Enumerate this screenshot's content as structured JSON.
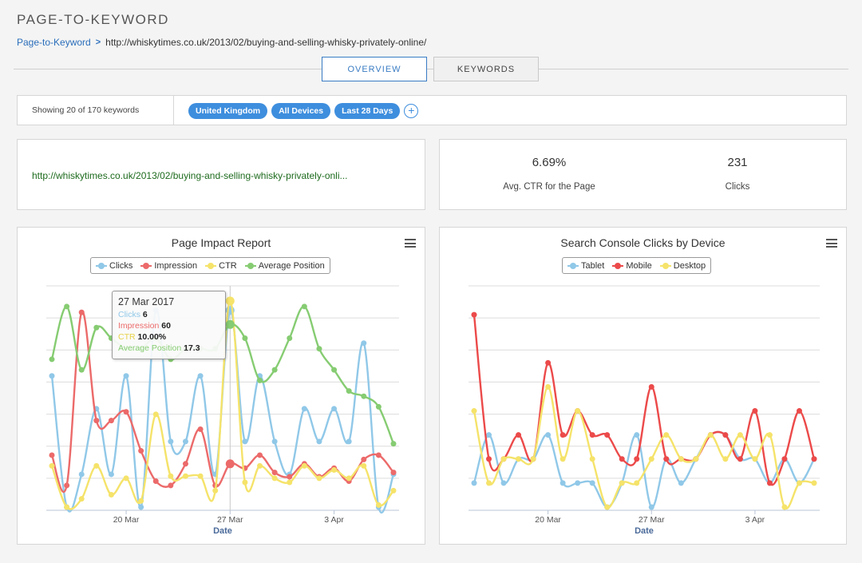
{
  "header": {
    "title": "PAGE-TO-KEYWORD",
    "breadcrumb_link": "Page-to-Keyword",
    "breadcrumb_sep": ">",
    "breadcrumb_url": "http://whiskytimes.co.uk/2013/02/buying-and-selling-whisky-privately-online/"
  },
  "tabs": [
    {
      "label": "OVERVIEW",
      "active": true
    },
    {
      "label": "KEYWORDS",
      "active": false
    }
  ],
  "filters": {
    "count_text": "Showing 20 of 170 keywords",
    "chips": [
      "United Kingdom",
      "All Devices",
      "Last 28 Days"
    ],
    "add_label": "+"
  },
  "page_url": "http://whiskytimes.co.uk/2013/02/buying-and-selling-whisky-privately-onli...",
  "stats": {
    "ctr_value": "6.69%",
    "ctr_label": "Avg. CTR for the Page",
    "clicks_value": "231",
    "clicks_label": "Clicks"
  },
  "colors": {
    "clicks": "#90c8e8",
    "impression": "#ec6a6a",
    "ctr": "#f5e36a",
    "avg_position": "#86cc72",
    "tablet": "#90c8e8",
    "mobile": "#ec4a4a",
    "desktop": "#f5e36a"
  },
  "tooltip": {
    "date": "27 Mar 2017",
    "rows": [
      {
        "label": "Clicks",
        "value": "6",
        "color": "#90c8e8"
      },
      {
        "label": "Impression",
        "value": "60",
        "color": "#ec6a6a"
      },
      {
        "label": "CTR",
        "value": "10.00%",
        "color": "#f5e36a"
      },
      {
        "label": "Average Position",
        "value": "17.3",
        "color": "#86cc72"
      }
    ]
  },
  "chart_data": [
    {
      "type": "line",
      "title": "Page Impact Report",
      "xlabel": "Date",
      "ylabel": "",
      "x_ticks": [
        "20 Mar",
        "27 Mar",
        "3 Apr"
      ],
      "x_tick_index": [
        5,
        12,
        19
      ],
      "x_count": 24,
      "grid": true,
      "legend": "top-center",
      "series": [
        {
          "name": "Clicks",
          "color": "#90c8e8",
          "values": [
            4,
            0,
            1,
            3,
            1,
            4,
            0,
            6,
            2,
            2,
            4,
            1,
            6,
            2,
            4,
            2,
            1,
            3,
            2,
            3,
            2,
            5,
            0,
            1
          ]
        },
        {
          "name": "Impression",
          "color": "#ec6a6a",
          "values": [
            62,
            55,
            95,
            70,
            70,
            72,
            63,
            56,
            55,
            60,
            68,
            55,
            60,
            59,
            62,
            58,
            57,
            60,
            57,
            59,
            56,
            61,
            62,
            58
          ]
        },
        {
          "name": "CTR",
          "color": "#f5e36a",
          "values": [
            2,
            0,
            0.4,
            2,
            0.6,
            1.4,
            0.3,
            4.5,
            1.5,
            1.5,
            1.5,
            0.8,
            10,
            1.2,
            2,
            1.4,
            1.2,
            2,
            1.4,
            1.8,
            1.4,
            2,
            0.1,
            0.8
          ]
        },
        {
          "name": "Average Position",
          "color": "#86cc72",
          "values": [
            14,
            19,
            13,
            17,
            16,
            15,
            15,
            16,
            14,
            15,
            15,
            15,
            17.3,
            16,
            12,
            13,
            16,
            19,
            15,
            13,
            11,
            10.5,
            9.5,
            6
          ]
        }
      ]
    },
    {
      "type": "line",
      "title": "Search Console Clicks by Device",
      "xlabel": "Date",
      "ylabel": "",
      "x_ticks": [
        "20 Mar",
        "27 Mar",
        "3 Apr"
      ],
      "x_tick_index": [
        5,
        12,
        19
      ],
      "x_count": 24,
      "grid": true,
      "legend": "top-center",
      "series": [
        {
          "name": "Tablet",
          "color": "#90c8e8",
          "values": [
            1,
            3,
            1,
            2,
            2,
            3,
            1,
            1,
            1,
            0,
            1,
            3,
            0,
            2,
            1,
            2,
            3,
            3,
            2,
            2,
            1,
            2,
            1,
            2
          ]
        },
        {
          "name": "Mobile",
          "color": "#ec4a4a",
          "values": [
            8,
            2,
            2,
            3,
            2,
            6,
            3,
            4,
            3,
            3,
            2,
            2,
            5,
            2,
            2,
            2,
            3,
            3,
            2,
            4,
            1,
            2,
            4,
            2
          ]
        },
        {
          "name": "Desktop",
          "color": "#f5e36a",
          "values": [
            4,
            1,
            2,
            2,
            2,
            5,
            2,
            4,
            2,
            0,
            1,
            1,
            2,
            3,
            2,
            2,
            3,
            2,
            3,
            2,
            3,
            0,
            1,
            1
          ]
        }
      ]
    }
  ]
}
